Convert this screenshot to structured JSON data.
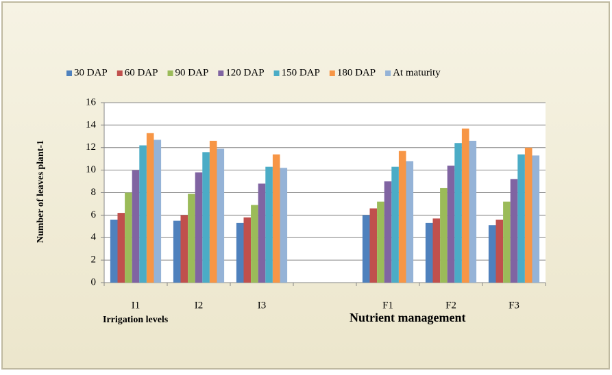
{
  "chart_data": {
    "type": "bar",
    "ylabel": "Number of leaves plant-1",
    "annotations": [
      "Irrigation levels",
      "Nutrient management"
    ],
    "categories": [
      "I1",
      "I2",
      "I3",
      null,
      "F1",
      "F2",
      "F3"
    ],
    "series": [
      {
        "name": "30 DAP",
        "color": "#4f81bd",
        "values": [
          5.6,
          5.5,
          5.3,
          null,
          6.0,
          5.3,
          5.1
        ]
      },
      {
        "name": "60 DAP",
        "color": "#c0504d",
        "values": [
          6.2,
          6.0,
          5.8,
          null,
          6.6,
          5.7,
          5.6
        ]
      },
      {
        "name": "90 DAP",
        "color": "#9bbb59",
        "values": [
          8.0,
          7.9,
          6.9,
          null,
          7.2,
          8.4,
          7.2
        ]
      },
      {
        "name": "120 DAP",
        "color": "#8064a2",
        "values": [
          10.0,
          9.8,
          8.8,
          null,
          9.0,
          10.4,
          9.2
        ]
      },
      {
        "name": "150 DAP",
        "color": "#4bacc6",
        "values": [
          12.2,
          11.6,
          10.3,
          null,
          10.3,
          12.4,
          11.4
        ]
      },
      {
        "name": "180 DAP",
        "color": "#f79646",
        "values": [
          13.3,
          12.6,
          11.4,
          null,
          11.7,
          13.7,
          12.0
        ]
      },
      {
        "name": "At maturity",
        "color": "#95b3d7",
        "values": [
          12.7,
          11.9,
          10.2,
          null,
          10.8,
          12.6,
          11.3
        ]
      }
    ],
    "ylim": [
      0,
      16
    ],
    "yticks": [
      0,
      2,
      4,
      6,
      8,
      10,
      12,
      14,
      16
    ],
    "grid": true,
    "legend": "top"
  }
}
